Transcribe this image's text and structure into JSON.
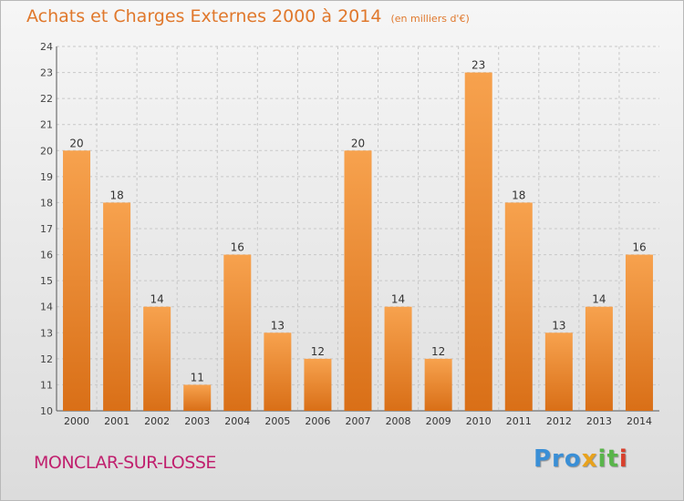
{
  "title": "Achats et Charges Externes 2000 à 2014",
  "subtitle": "(en milliers d'€)",
  "city": "MONCLAR-SUR-LOSSE",
  "logo": {
    "text": "Proxiti",
    "parts": [
      "Pro",
      "x",
      "it",
      "i"
    ]
  },
  "colors": {
    "bar_top": "#f7a24e",
    "bar_bottom": "#d96f17",
    "title": "#e0782c",
    "city": "#c0206e"
  },
  "chart_data": {
    "type": "bar",
    "categories": [
      "2000",
      "2001",
      "2002",
      "2003",
      "2004",
      "2005",
      "2006",
      "2007",
      "2008",
      "2009",
      "2010",
      "2011",
      "2012",
      "2013",
      "2014"
    ],
    "values": [
      20,
      18,
      14,
      11,
      16,
      13,
      12,
      20,
      14,
      12,
      23,
      18,
      13,
      14,
      16
    ],
    "ylim": [
      10,
      24
    ],
    "yticks": [
      10,
      11,
      12,
      13,
      14,
      15,
      16,
      17,
      18,
      19,
      20,
      21,
      22,
      23,
      24
    ],
    "grid": true,
    "data_labels": true
  }
}
